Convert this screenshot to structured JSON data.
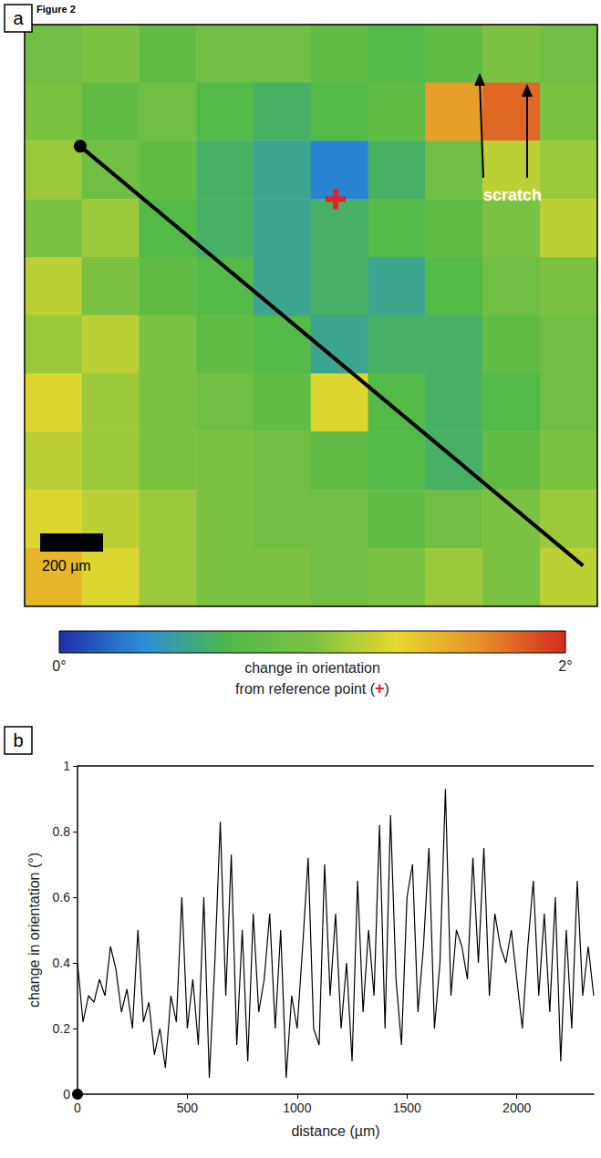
{
  "figure_title": "Figure 2",
  "chart_data": [
    {
      "type": "heatmap",
      "panel": "a",
      "tick_labels": false,
      "cells": [
        [
          0.9,
          1.0,
          0.8,
          0.9,
          0.9,
          0.8,
          0.7,
          0.8,
          1.0,
          0.9
        ],
        [
          1.0,
          0.8,
          0.9,
          0.7,
          0.6,
          0.7,
          0.8,
          1.6,
          1.8,
          1.0
        ],
        [
          1.1,
          0.9,
          0.8,
          0.6,
          0.5,
          0.3,
          0.6,
          0.9,
          1.2,
          1.1
        ],
        [
          1.0,
          1.1,
          0.7,
          0.6,
          0.5,
          0.6,
          0.7,
          0.8,
          1.0,
          1.2
        ],
        [
          1.2,
          1.0,
          0.8,
          0.7,
          0.5,
          0.6,
          0.5,
          0.7,
          0.9,
          1.0
        ],
        [
          1.1,
          1.2,
          1.0,
          0.8,
          0.7,
          0.5,
          0.6,
          0.6,
          0.8,
          0.9
        ],
        [
          1.3,
          1.1,
          1.0,
          0.9,
          0.8,
          1.3,
          0.7,
          0.6,
          0.7,
          0.9
        ],
        [
          1.2,
          1.1,
          1.0,
          1.0,
          0.9,
          0.8,
          0.7,
          0.6,
          0.8,
          1.0
        ],
        [
          1.3,
          1.2,
          1.1,
          1.0,
          0.9,
          0.9,
          0.8,
          0.9,
          1.0,
          1.1
        ],
        [
          1.5,
          1.3,
          1.1,
          1.0,
          1.0,
          0.9,
          1.0,
          1.1,
          1.0,
          1.2
        ]
      ],
      "colors": [
        "#1f2fa8",
        "#2a8fd6",
        "#4fb848",
        "#7cc242",
        "#e6d92c",
        "#e89028",
        "#d42a1e"
      ],
      "colorbar": {
        "range": [
          0,
          2
        ],
        "ticks": [
          {
            "value": 0,
            "label": "0°"
          },
          {
            "value": 2,
            "label": "2°"
          }
        ],
        "label": [
          "change in orientation",
          "from reference point (+)"
        ]
      },
      "annotations": [
        "scratch",
        "200 µm"
      ]
    },
    {
      "type": "line",
      "panel": "b",
      "color": "#000000",
      "grid": false,
      "x_label": "distance (µm)",
      "y_label": "change in orientation (°)",
      "xlim": [
        0,
        2350
      ],
      "ylim": [
        0,
        1
      ],
      "xticks": [
        0,
        500,
        1000,
        1500,
        2000
      ],
      "yticks": [
        0,
        0.2,
        0.4,
        0.6,
        0.8,
        1
      ],
      "x": [
        0,
        25,
        50,
        75,
        100,
        125,
        150,
        175,
        200,
        225,
        250,
        275,
        300,
        325,
        350,
        375,
        400,
        425,
        450,
        475,
        500,
        525,
        550,
        575,
        600,
        625,
        650,
        675,
        700,
        725,
        750,
        775,
        800,
        825,
        850,
        875,
        900,
        925,
        950,
        975,
        1000,
        1025,
        1050,
        1075,
        1100,
        1125,
        1150,
        1175,
        1200,
        1225,
        1250,
        1275,
        1300,
        1325,
        1350,
        1375,
        1400,
        1425,
        1450,
        1475,
        1500,
        1525,
        1550,
        1575,
        1600,
        1625,
        1650,
        1675,
        1700,
        1725,
        1750,
        1775,
        1800,
        1825,
        1850,
        1875,
        1900,
        1925,
        1950,
        1975,
        2000,
        2025,
        2050,
        2075,
        2100,
        2125,
        2150,
        2175,
        2200,
        2225,
        2250,
        2275,
        2300,
        2325,
        2350
      ],
      "values": [
        0.4,
        0.22,
        0.3,
        0.28,
        0.35,
        0.3,
        0.45,
        0.38,
        0.25,
        0.32,
        0.2,
        0.5,
        0.22,
        0.28,
        0.12,
        0.2,
        0.08,
        0.3,
        0.22,
        0.6,
        0.2,
        0.35,
        0.15,
        0.6,
        0.05,
        0.4,
        0.83,
        0.3,
        0.73,
        0.15,
        0.5,
        0.1,
        0.55,
        0.25,
        0.35,
        0.55,
        0.2,
        0.5,
        0.05,
        0.3,
        0.2,
        0.45,
        0.72,
        0.2,
        0.15,
        0.7,
        0.3,
        0.55,
        0.2,
        0.4,
        0.1,
        0.65,
        0.25,
        0.5,
        0.3,
        0.82,
        0.2,
        0.85,
        0.35,
        0.15,
        0.6,
        0.7,
        0.25,
        0.45,
        0.75,
        0.2,
        0.4,
        0.93,
        0.3,
        0.5,
        0.45,
        0.35,
        0.72,
        0.4,
        0.75,
        0.3,
        0.55,
        0.45,
        0.4,
        0.5,
        0.35,
        0.2,
        0.45,
        0.65,
        0.3,
        0.55,
        0.25,
        0.6,
        0.1,
        0.5,
        0.2,
        0.65,
        0.3,
        0.45,
        0.3
      ]
    }
  ]
}
